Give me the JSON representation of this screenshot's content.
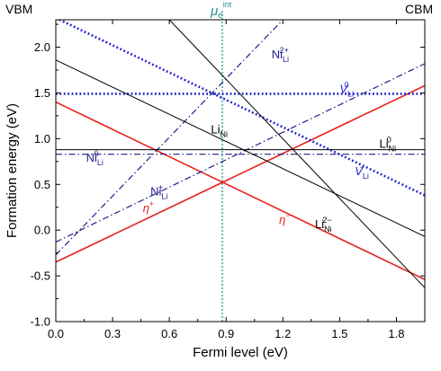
{
  "chart_data": {
    "type": "line",
    "xlabel": "Fermi level (eV)",
    "ylabel": "Formation energy (eV)",
    "xlim": [
      0.0,
      1.95
    ],
    "ylim": [
      -1.0,
      2.3
    ],
    "xticks": [
      "0.0",
      "0.3",
      "0.6",
      "0.9",
      "1.2",
      "1.5",
      "1.8"
    ],
    "yticks": [
      "-1.0",
      "-0.5",
      "0.0",
      "0.5",
      "1.0",
      "1.5",
      "2.0"
    ],
    "xtick_values": [
      0.0,
      0.3,
      0.6,
      0.9,
      1.2,
      1.5,
      1.8
    ],
    "ytick_values": [
      -1.0,
      -0.5,
      0.0,
      0.5,
      1.0,
      1.5,
      2.0
    ],
    "corner_left": "VBM",
    "corner_right": "CBM",
    "mu_line": {
      "x": 0.88,
      "label_main": "μ",
      "label_sub": "e",
      "label_sup": "int",
      "color": "#2a8f8f"
    },
    "series": [
      {
        "id": "eta_plus",
        "color": "#e8231d",
        "style": "solid",
        "width": 1.6,
        "x": [
          0.0,
          1.95
        ],
        "y": [
          -0.35,
          1.58
        ]
      },
      {
        "id": "eta_minus",
        "color": "#e8231d",
        "style": "solid",
        "width": 1.6,
        "x": [
          0.0,
          1.95
        ],
        "y": [
          1.4,
          -0.54
        ]
      },
      {
        "id": "V_Li_0",
        "color": "#1d1dcc",
        "style": "dotted",
        "width": 2.6,
        "x": [
          0.0,
          1.95
        ],
        "y": [
          1.49,
          1.49
        ]
      },
      {
        "id": "V_Li_minus",
        "color": "#1d1dcc",
        "style": "dotted",
        "width": 2.6,
        "x": [
          0.0,
          1.95
        ],
        "y": [
          2.32,
          0.38
        ]
      },
      {
        "id": "Ni_Li_0",
        "color": "#1f1f8c",
        "style": "dashdot",
        "width": 1.2,
        "x": [
          0.0,
          1.95
        ],
        "y": [
          0.83,
          0.83
        ]
      },
      {
        "id": "Ni_Li_plus",
        "color": "#1f1f8c",
        "style": "dashdot",
        "width": 1.2,
        "x": [
          0.0,
          1.95
        ],
        "y": [
          -0.13,
          1.82
        ]
      },
      {
        "id": "Ni_Li_2plus",
        "color": "#1f1f8c",
        "style": "dashdot",
        "width": 1.2,
        "x": [
          0.0,
          1.2
        ],
        "y": [
          -0.27,
          2.3
        ]
      },
      {
        "id": "Li_Ni_0",
        "color": "#000000",
        "style": "solid",
        "width": 1.0,
        "x": [
          0.0,
          1.95
        ],
        "y": [
          0.88,
          0.88
        ]
      },
      {
        "id": "Li_Ni_minus",
        "color": "#000000",
        "style": "solid",
        "width": 1.0,
        "x": [
          0.0,
          1.95
        ],
        "y": [
          1.86,
          -0.07
        ]
      },
      {
        "id": "Li_Ni_2minus",
        "color": "#000000",
        "style": "solid",
        "width": 1.0,
        "x": [
          0.6,
          1.95
        ],
        "y": [
          2.3,
          -0.63
        ]
      }
    ],
    "annotations": [
      {
        "id": "ann-eta-plus",
        "main": "η",
        "sup": "+",
        "sub": "",
        "x": 0.46,
        "y": 0.2,
        "color": "#e8231d",
        "italic": true
      },
      {
        "id": "ann-eta-minus",
        "main": "η",
        "sup": "−",
        "sub": "",
        "x": 1.18,
        "y": 0.07,
        "color": "#e8231d",
        "italic": true
      },
      {
        "id": "ann-v-li-0",
        "main": "V",
        "sup": "0",
        "sub": "Li",
        "x": 1.5,
        "y": 1.5,
        "color": "#1d1dcc",
        "italic": true
      },
      {
        "id": "ann-v-li-minus",
        "main": "V",
        "sup": "−",
        "sub": "Li",
        "x": 1.58,
        "y": 0.6,
        "color": "#1d1dcc",
        "italic": true
      },
      {
        "id": "ann-ni-li-2plus",
        "main": "Ni",
        "sup": "2+",
        "sub": "Li",
        "x": 1.14,
        "y": 1.88,
        "color": "#1f1f8c",
        "italic": false
      },
      {
        "id": "ann-ni-li-0",
        "main": "Ni",
        "sup": "0",
        "sub": "Li",
        "x": 0.16,
        "y": 0.75,
        "color": "#1f1f8c",
        "italic": false
      },
      {
        "id": "ann-ni-li-plus",
        "main": "Ni",
        "sup": "+",
        "sub": "Li",
        "x": 0.5,
        "y": 0.38,
        "color": "#1f1f8c",
        "italic": false
      },
      {
        "id": "ann-li-ni-minus",
        "main": "Li",
        "sup": "",
        "sub": "Ni",
        "x": 0.82,
        "y": 1.06,
        "color": "#000000",
        "italic": false
      },
      {
        "id": "ann-li-ni-0",
        "main": "Li",
        "sup": "0",
        "sub": "Ni",
        "x": 1.71,
        "y": 0.9,
        "color": "#000000",
        "italic": false
      },
      {
        "id": "ann-li-ni-2minus",
        "main": "Li",
        "sup": "2−",
        "sub": "Ni",
        "x": 1.37,
        "y": 0.02,
        "color": "#000000",
        "italic": false
      }
    ]
  }
}
